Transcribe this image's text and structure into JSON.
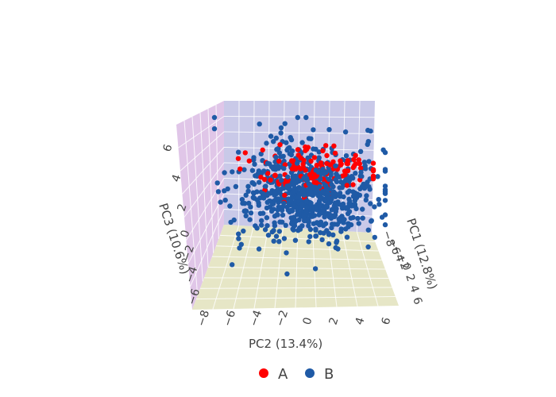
{
  "chart_data": {
    "type": "scatter3d",
    "title": "",
    "axes": {
      "x": {
        "label": "PC1 (12.8%)",
        "range": [
          -8,
          6
        ],
        "ticks": [
          "−8",
          "−6",
          "−4",
          "−2",
          "0",
          "2",
          "4",
          "6"
        ]
      },
      "y": {
        "label": "PC2 (13.4%)",
        "range": [
          -8,
          6
        ],
        "ticks": [
          "−8",
          "−6",
          "−4",
          "−2",
          "0",
          "2",
          "4",
          "6"
        ]
      },
      "z": {
        "label": "PC3 (10.6%)",
        "range": [
          -6,
          6
        ],
        "ticks": [
          "6",
          "4",
          "2",
          "0",
          "−2",
          "−4",
          "−6"
        ]
      }
    },
    "grid": true,
    "legend": {
      "placement": "bottom-center"
    },
    "series": [
      {
        "name": "A",
        "color": "#ff0000",
        "count": 120
      },
      {
        "name": "B",
        "color": "#1f5aa6",
        "count": 600
      }
    ]
  },
  "colors": {
    "wall_left": "#e0c6e8",
    "wall_back": "#c9c9e8",
    "floor": "#e6e6c6",
    "text": "#444444"
  }
}
